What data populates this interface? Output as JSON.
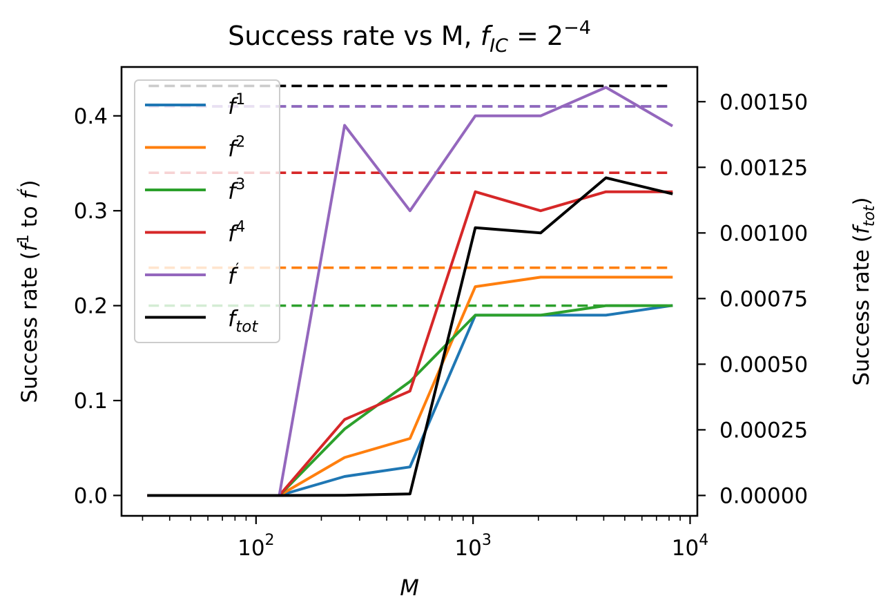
{
  "chart_data": {
    "type": "line",
    "title": "Success rate vs M, ",
    "title_math": {
      "var": "f",
      "sub": "IC",
      "eq": " = 2",
      "sup": "−4"
    },
    "xlabel": "M",
    "xscale": "log",
    "xlim": [
      24,
      10800
    ],
    "x_ticks": [
      {
        "value": 100,
        "base": "10",
        "exp": "2"
      },
      {
        "value": 1000,
        "base": "10",
        "exp": "3"
      },
      {
        "value": 10000,
        "base": "10",
        "exp": "4"
      }
    ],
    "ylabel_left": {
      "pre": "Success rate (",
      "v1": "f",
      "s1": "1",
      "mid": " to ",
      "v2": "f",
      "s2": "′",
      "post": ")"
    },
    "ylim_left": [
      -0.0215,
      0.4515
    ],
    "y_ticks_left": [
      "0.0",
      "0.1",
      "0.2",
      "0.3",
      "0.4"
    ],
    "ylabel_right": {
      "pre": "Success rate (",
      "v": "f",
      "sub": "tot",
      "post": ")"
    },
    "ylim_right": [
      -7.77e-05,
      0.0016322
    ],
    "y_ticks_right": [
      "0.00000",
      "0.00025",
      "0.00050",
      "0.00075",
      "0.00100",
      "0.00125",
      "0.00150"
    ],
    "x": [
      32,
      64,
      128,
      256,
      512,
      1024,
      2048,
      4096,
      8192
    ],
    "series": [
      {
        "name": "f",
        "sup": "1",
        "color": "#1f77b4",
        "axis": "left",
        "values": [
          0,
          0,
          0,
          0.02,
          0.03,
          0.19,
          0.19,
          0.19,
          0.2
        ],
        "target": 0.41
      },
      {
        "name": "f",
        "sup": "2",
        "color": "#ff7f0e",
        "axis": "left",
        "values": [
          0,
          0,
          0,
          0.04,
          0.06,
          0.22,
          0.23,
          0.23,
          0.23
        ],
        "target": 0.24
      },
      {
        "name": "f",
        "sup": "3",
        "color": "#2ca02c",
        "axis": "left",
        "values": [
          0,
          0,
          0,
          0.07,
          0.12,
          0.19,
          0.19,
          0.2,
          0.2
        ],
        "target": 0.2
      },
      {
        "name": "f",
        "sup": "4",
        "color": "#d62728",
        "axis": "left",
        "values": [
          0,
          0,
          0,
          0.08,
          0.11,
          0.32,
          0.3,
          0.32,
          0.32
        ],
        "target": 0.34
      },
      {
        "name": "f",
        "sup": "′",
        "color": "#9467bd",
        "axis": "left",
        "values": [
          0,
          0,
          0,
          0.39,
          0.3,
          0.4,
          0.4,
          0.43,
          0.39
        ],
        "target": 0.41
      },
      {
        "name": "f",
        "sub": "tot",
        "color": "#000000",
        "axis": "right",
        "values": [
          0,
          0,
          0,
          7e-07,
          6e-06,
          0.00102,
          0.001,
          0.00121,
          0.00115
        ],
        "target": 0.00156
      }
    ]
  }
}
